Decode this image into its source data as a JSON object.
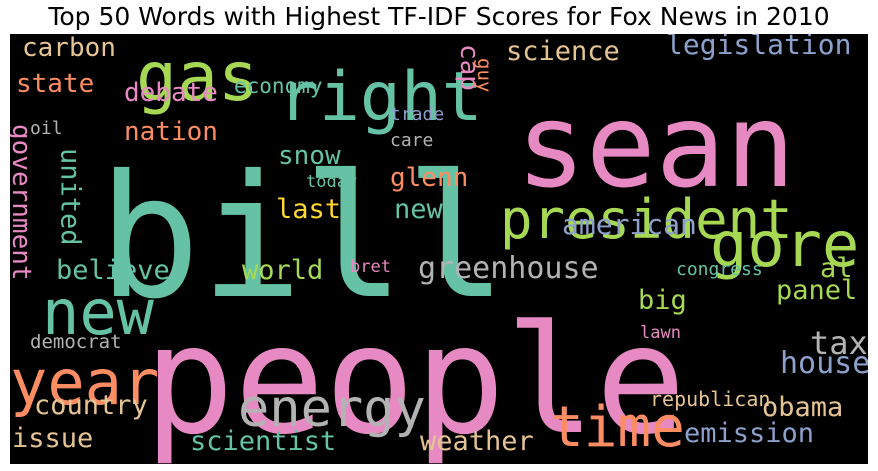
{
  "chart_data": {
    "type": "wordcloud",
    "title": "Top 50 Words with Highest TF-IDF Scores for Fox News in 2010",
    "words": [
      {
        "text": "bill",
        "color": "#66c2a5"
      },
      {
        "text": "people",
        "color": "#e78ac3"
      },
      {
        "text": "sean",
        "color": "#e78ac3"
      },
      {
        "text": "president",
        "color": "#a6d854"
      },
      {
        "text": "right",
        "color": "#66c2a5"
      },
      {
        "text": "gas",
        "color": "#a6d854"
      },
      {
        "text": "gore",
        "color": "#a6d854"
      },
      {
        "text": "new",
        "color": "#66c2a5"
      },
      {
        "text": "year",
        "color": "#fc8d62"
      },
      {
        "text": "time",
        "color": "#fc8d62"
      },
      {
        "text": "energy",
        "color": "#b3b3b3"
      },
      {
        "text": "greenhouse",
        "color": "#b3b3b3"
      },
      {
        "text": "american",
        "color": "#8da0cb"
      },
      {
        "text": "legislation",
        "color": "#8da0cb"
      },
      {
        "text": "science",
        "color": "#e5c494"
      },
      {
        "text": "carbon",
        "color": "#e5c494"
      },
      {
        "text": "state",
        "color": "#fc8d62"
      },
      {
        "text": "debate",
        "color": "#e78ac3"
      },
      {
        "text": "nation",
        "color": "#fc8d62"
      },
      {
        "text": "economy",
        "color": "#66c2a5"
      },
      {
        "text": "cap",
        "color": "#e78ac3"
      },
      {
        "text": "guy",
        "color": "#fc8d62"
      },
      {
        "text": "trade",
        "color": "#8da0cb"
      },
      {
        "text": "care",
        "color": "#b3b3b3"
      },
      {
        "text": "oil",
        "color": "#b3b3b3"
      },
      {
        "text": "government",
        "color": "#e78ac3"
      },
      {
        "text": "united",
        "color": "#66c2a5"
      },
      {
        "text": "snow",
        "color": "#66c2a5"
      },
      {
        "text": "today",
        "color": "#66c2a5"
      },
      {
        "text": "glenn",
        "color": "#fc8d62"
      },
      {
        "text": "last",
        "color": "#ffd92f"
      },
      {
        "text": "news",
        "color": "#66c2a5"
      },
      {
        "text": "believe",
        "color": "#66c2a5"
      },
      {
        "text": "world",
        "color": "#a6d854"
      },
      {
        "text": "bret",
        "color": "#e78ac3"
      },
      {
        "text": "congress",
        "color": "#66c2a5"
      },
      {
        "text": "al",
        "color": "#a6d854"
      },
      {
        "text": "big",
        "color": "#a6d854"
      },
      {
        "text": "panel",
        "color": "#a6d854"
      },
      {
        "text": "tax",
        "color": "#b3b3b3"
      },
      {
        "text": "house",
        "color": "#8da0cb"
      },
      {
        "text": "lawn",
        "color": "#e78ac3"
      },
      {
        "text": "democrat",
        "color": "#b3b3b3"
      },
      {
        "text": "country",
        "color": "#e5c494"
      },
      {
        "text": "republican",
        "color": "#e5c494"
      },
      {
        "text": "obama",
        "color": "#e5c494"
      },
      {
        "text": "issue",
        "color": "#e5c494"
      },
      {
        "text": "scientist",
        "color": "#66c2a5"
      },
      {
        "text": "weather",
        "color": "#e5c494"
      },
      {
        "text": "emission",
        "color": "#8da0cb"
      }
    ]
  }
}
